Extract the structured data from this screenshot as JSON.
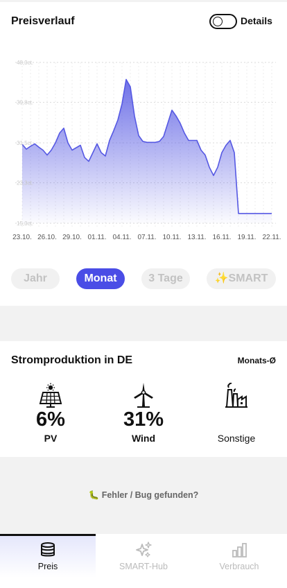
{
  "price_card": {
    "title": "Preisverlauf",
    "details_label": "Details",
    "details_toggle_on": false
  },
  "chart_data": {
    "type": "area",
    "title": "",
    "ylabel": "",
    "xlabel": "",
    "y_tick_labels": [
      "48,0ct.",
      "39,8ct.",
      "31,5ct.",
      "23,3ct.",
      "15,0ct."
    ],
    "y_ticks": [
      48.0,
      39.8,
      31.5,
      23.3,
      15.0
    ],
    "ylim": [
      15.0,
      48.0
    ],
    "x_tick_labels": [
      "23.10.",
      "26.10.",
      "29.10.",
      "01.11.",
      "04.11.",
      "07.11.",
      "10.11.",
      "13.11.",
      "16.11.",
      "19.11.",
      "22.11."
    ],
    "grid": true,
    "color": "#5558e3",
    "x": [
      0,
      0.5,
      1,
      1.5,
      2,
      2.5,
      3,
      3.5,
      4,
      4.5,
      5,
      5.5,
      6,
      6.5,
      7,
      7.5,
      8,
      8.5,
      9,
      9.5,
      10,
      10.5,
      11,
      11.5,
      12,
      12.5,
      13,
      13.5,
      14,
      14.5,
      15,
      15.5,
      16,
      16.5,
      17,
      17.5,
      18,
      18.5,
      19,
      19.5,
      20,
      20.5,
      21,
      21.5,
      22,
      22.5,
      23,
      23.5,
      24,
      24.5,
      25,
      25.5,
      26,
      26.5,
      27,
      27.5,
      28,
      28.5,
      29,
      29.5,
      30
    ],
    "values": [
      31.2,
      30.2,
      30.8,
      31.3,
      30.6,
      30.0,
      29.0,
      30.0,
      31.5,
      33.5,
      34.5,
      31.5,
      30.0,
      30.5,
      31.0,
      28.5,
      27.7,
      29.5,
      31.3,
      29.5,
      28.8,
      32.0,
      34.0,
      36.2,
      39.5,
      44.5,
      43.0,
      37.0,
      33.0,
      31.8,
      31.6,
      31.6,
      31.6,
      31.8,
      32.8,
      35.5,
      38.2,
      37.0,
      35.5,
      33.5,
      32.0,
      32.0,
      32.0,
      30.0,
      29.0,
      26.5,
      24.8,
      26.5,
      29.5,
      31.0,
      32.0,
      29.5,
      17.0,
      17.0,
      17.0,
      17.0,
      17.0,
      17.0,
      17.0,
      17.0,
      17.0
    ]
  },
  "range_tabs": [
    {
      "label": "Jahr",
      "active": false
    },
    {
      "label": "Monat",
      "active": true
    },
    {
      "label": "3 Tage",
      "active": false
    },
    {
      "label": "✨SMART",
      "active": false
    }
  ],
  "production": {
    "title": "Stromproduktion in DE",
    "subtitle": "Monats-Ø",
    "items": [
      {
        "icon": "solar-panel-icon",
        "value": "6%",
        "label": "PV"
      },
      {
        "icon": "wind-turbine-icon",
        "value": "31%",
        "label": "Wind"
      },
      {
        "icon": "factory-icon",
        "value": "",
        "label": "Sonstige"
      }
    ]
  },
  "bug_report": "🐛 Fehler / Bug gefunden?",
  "bottom_nav": [
    {
      "label": "Preis",
      "icon": "database-icon",
      "active": true
    },
    {
      "label": "SMART-Hub",
      "icon": "sparkles-icon",
      "active": false
    },
    {
      "label": "Verbrauch",
      "icon": "bar-chart-icon",
      "active": false
    }
  ]
}
